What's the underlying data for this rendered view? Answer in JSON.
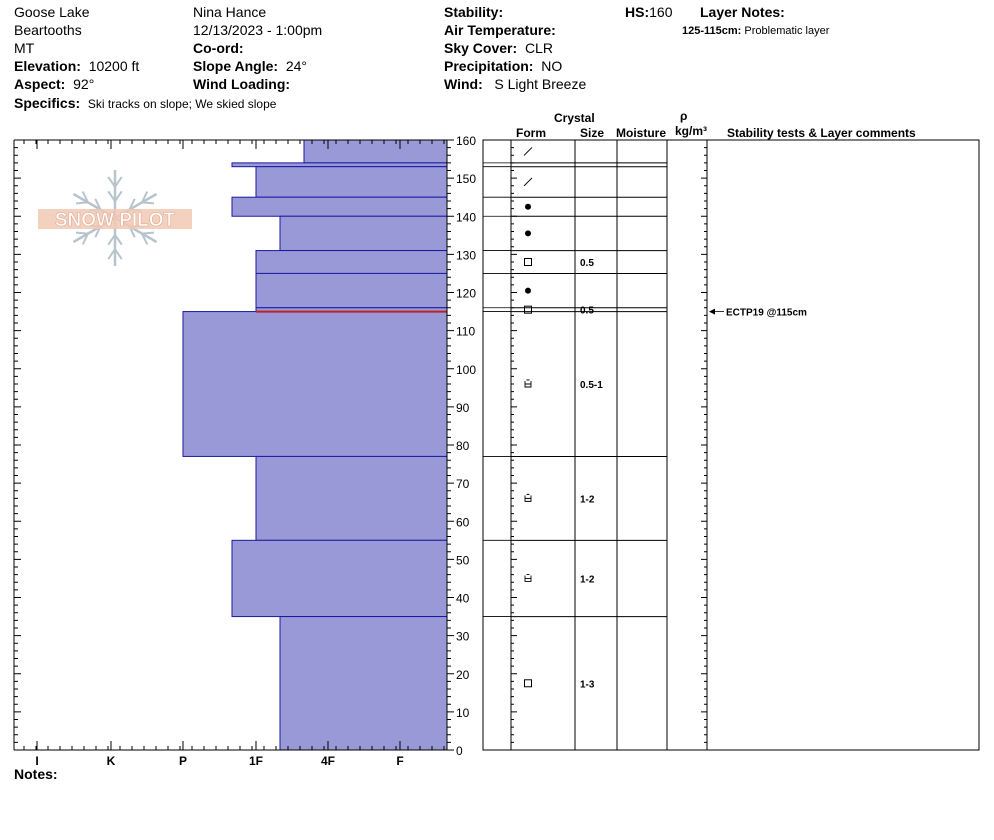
{
  "header": {
    "location": "Goose Lake",
    "range": "Beartooths",
    "state": "MT",
    "elevation_label": "Elevation:",
    "elevation_value": "10200 ft",
    "aspect_label": "Aspect:",
    "aspect_value": "92°",
    "specifics_label": "Specifics:",
    "specifics_value": "Ski tracks on slope; We skied slope",
    "observer": "Nina Hance",
    "datetime": "12/13/2023 - 1:00pm",
    "coord_label": "Co-ord:",
    "coord_value": "",
    "slope_label": "Slope Angle:",
    "slope_value": "24°",
    "wind_loading_label": "Wind Loading:",
    "wind_loading_value": "",
    "stability_label": "Stability:",
    "stability_value": "",
    "air_temp_label": "Air Temperature:",
    "air_temp_value": "",
    "sky_label": "Sky Cover:",
    "sky_value": "CLR",
    "precip_label": "Precipitation:",
    "precip_value": "NO",
    "wind_label": "Wind:",
    "wind_value": "S Light Breeze",
    "hs_label": "HS:",
    "hs_value": "160",
    "layer_notes_label": "Layer Notes:",
    "layer_note_range": "125-115cm:",
    "layer_note_text": "Problematic layer"
  },
  "watermark": {
    "text": "SNOW PILOT"
  },
  "columns": {
    "crystal": "Crystal",
    "form": "Form",
    "size": "Size",
    "moisture": "Moisture",
    "rho": "ρ",
    "density_unit": "kg/m³",
    "stability_comments": "Stability tests & Layer comments"
  },
  "notes_label": "Notes:",
  "stability_test": {
    "text": "ECTP19 @115cm",
    "depth": 115
  },
  "chart_data": {
    "type": "bar",
    "orientation": "horizontal",
    "y_axis": {
      "range": [
        0,
        160
      ],
      "ticks": [
        0,
        10,
        20,
        30,
        40,
        50,
        60,
        70,
        80,
        90,
        100,
        110,
        120,
        130,
        140,
        150,
        160
      ]
    },
    "hardness_scale": [
      "I",
      "K",
      "P",
      "1F",
      "4F",
      "F"
    ],
    "hardness_scale_order": [
      "F",
      "4F",
      "1F",
      "P",
      "K",
      "I"
    ],
    "layers": [
      {
        "top": 160,
        "bottom": 154,
        "hardness": "4F+",
        "form_icon": "slash",
        "size": ""
      },
      {
        "top": 154,
        "bottom": 153,
        "hardness": "1F+",
        "form_icon": "",
        "size": ""
      },
      {
        "top": 153,
        "bottom": 145,
        "hardness": "1F",
        "form_icon": "slash",
        "size": ""
      },
      {
        "top": 145,
        "bottom": 140,
        "hardness": "1F+",
        "form_icon": "dot",
        "size": ""
      },
      {
        "top": 140,
        "bottom": 131,
        "hardness": "1F-",
        "form_icon": "dot",
        "size": ""
      },
      {
        "top": 131,
        "bottom": 125,
        "hardness": "1F",
        "form_icon": "square",
        "size": "0.5"
      },
      {
        "top": 125,
        "bottom": 116,
        "hardness": "1F",
        "form_icon": "dot",
        "size": ""
      },
      {
        "top": 116,
        "bottom": 115,
        "hardness": "1F",
        "form_icon": "square",
        "size": "0.5"
      },
      {
        "top": 115,
        "bottom": 77,
        "hardness": "P",
        "form_icon": "cup",
        "size": "0.5-1"
      },
      {
        "top": 77,
        "bottom": 55,
        "hardness": "1F",
        "form_icon": "cup",
        "size": "1-2"
      },
      {
        "top": 55,
        "bottom": 35,
        "hardness": "1F+",
        "form_icon": "cup",
        "size": "1-2"
      },
      {
        "top": 35,
        "bottom": 0,
        "hardness": "1F-",
        "form_icon": "square",
        "size": "1-3"
      }
    ],
    "problem_layer_depth": 115,
    "colors": {
      "bar_fill": "#9999d8",
      "bar_stroke": "#1a1aa0",
      "problem_line": "#c02020"
    }
  }
}
